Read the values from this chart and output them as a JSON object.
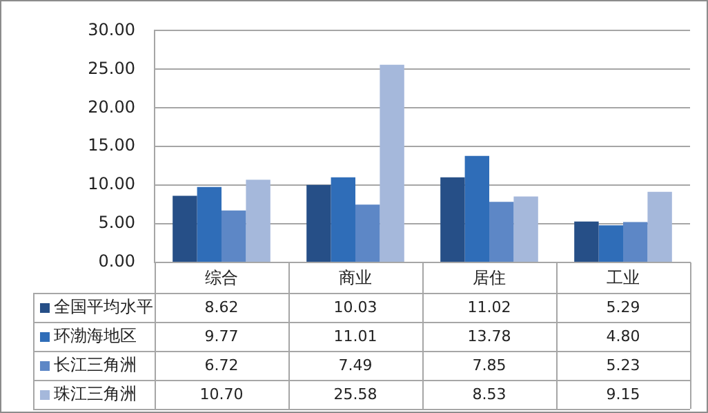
{
  "chart_data": {
    "type": "bar",
    "categories": [
      "综合",
      "商业",
      "居住",
      "工业"
    ],
    "series": [
      {
        "name": "全国平均水平",
        "color": "#264f87",
        "values": [
          8.62,
          10.03,
          11.02,
          5.29
        ],
        "value_labels": [
          "8.62",
          "10.03",
          "11.02",
          "5.29"
        ]
      },
      {
        "name": "环渤海地区",
        "color": "#2f6db8",
        "values": [
          9.77,
          11.01,
          13.78,
          4.8
        ],
        "value_labels": [
          "9.77",
          "11.01",
          "13.78",
          "4.80"
        ]
      },
      {
        "name": "长江三角洲",
        "color": "#5d87c6",
        "values": [
          6.72,
          7.49,
          7.85,
          5.23
        ],
        "value_labels": [
          "6.72",
          "7.49",
          "7.85",
          "5.23"
        ]
      },
      {
        "name": "珠江三角洲",
        "color": "#a5b8db",
        "values": [
          10.7,
          25.58,
          8.53,
          9.15
        ],
        "value_labels": [
          "10.70",
          "25.58",
          "8.53",
          "9.15"
        ]
      }
    ],
    "ylim": [
      0,
      30
    ],
    "yticks": [
      {
        "value": 0,
        "label": "0.00"
      },
      {
        "value": 5,
        "label": "5.00"
      },
      {
        "value": 10,
        "label": "10.00"
      },
      {
        "value": 15,
        "label": "15.00"
      },
      {
        "value": 20,
        "label": "20.00"
      },
      {
        "value": 25,
        "label": "25.00"
      },
      {
        "value": 30,
        "label": "30.00"
      }
    ],
    "grid": "y",
    "legend": "bottom left"
  }
}
